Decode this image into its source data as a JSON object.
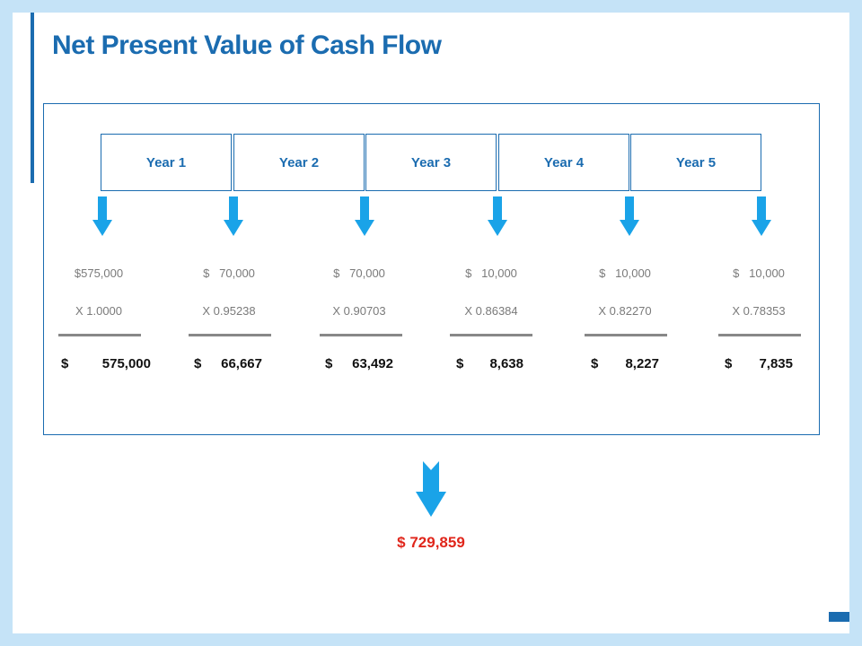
{
  "title": "Net Present Value of Cash Flow",
  "years": [
    "Year 1",
    "Year 2",
    "Year 3",
    "Year 4",
    "Year 5"
  ],
  "columns": [
    {
      "cash": "$575,000",
      "factor": "X 1.0000",
      "pv_symbol": "$",
      "pv_value": "575,000"
    },
    {
      "cash": "$   70,000",
      "factor": "X 0.95238",
      "pv_symbol": "$",
      "pv_value": "66,667"
    },
    {
      "cash": "$   70,000",
      "factor": "X 0.90703",
      "pv_symbol": "$",
      "pv_value": "63,492"
    },
    {
      "cash": "$   10,000",
      "factor": "X 0.86384",
      "pv_symbol": "$",
      "pv_value": "8,638"
    },
    {
      "cash": "$   10,000",
      "factor": "X 0.82270",
      "pv_symbol": "$",
      "pv_value": "8,227"
    },
    {
      "cash": "$   10,000",
      "factor": "X 0.78353",
      "pv_symbol": "$",
      "pv_value": "7,835"
    }
  ],
  "total": "$ 729,859",
  "icons": {
    "arrow": "down-arrow-icon"
  },
  "colors": {
    "primary": "#1b6cb0",
    "arrow": "#1aa3e8",
    "total": "#e0261b",
    "muted": "#7a7a7a"
  }
}
